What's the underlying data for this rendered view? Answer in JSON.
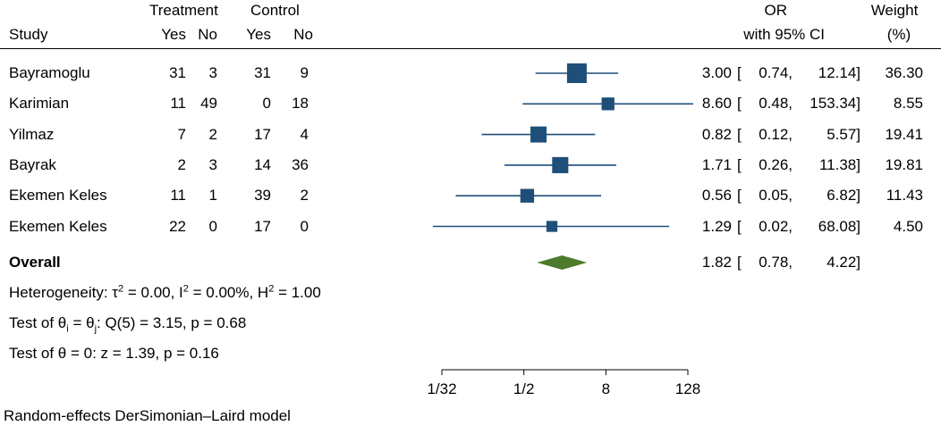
{
  "header": {
    "study_label": "Study",
    "treatment_label": "Treatment",
    "control_label": "Control",
    "yes_label": "Yes",
    "no_label": "No",
    "or_label": "OR",
    "ci_label": "with 95% CI",
    "weight_label": "Weight",
    "weight_unit": "(%)"
  },
  "studies": [
    {
      "name": "Bayramoglu",
      "t_yes": "31",
      "t_no": "3",
      "c_yes": "31",
      "c_no": "9",
      "or_text": "3.00",
      "lo_text": "0.74,",
      "hi_text": "12.14]",
      "weight": "36.30"
    },
    {
      "name": "Karimian",
      "t_yes": "11",
      "t_no": "49",
      "c_yes": "0",
      "c_no": "18",
      "or_text": "8.60",
      "lo_text": "0.48,",
      "hi_text": "153.34]",
      "weight": "8.55"
    },
    {
      "name": "Yilmaz",
      "t_yes": "7",
      "t_no": "2",
      "c_yes": "17",
      "c_no": "4",
      "or_text": "0.82",
      "lo_text": "0.12,",
      "hi_text": "5.57]",
      "weight": "19.41"
    },
    {
      "name": "Bayrak",
      "t_yes": "2",
      "t_no": "3",
      "c_yes": "14",
      "c_no": "36",
      "or_text": "1.71",
      "lo_text": "0.26,",
      "hi_text": "11.38]",
      "weight": "19.81"
    },
    {
      "name": "Ekemen Keles",
      "t_yes": "11",
      "t_no": "1",
      "c_yes": "39",
      "c_no": "2",
      "or_text": "0.56",
      "lo_text": "0.05,",
      "hi_text": "6.82]",
      "weight": "11.43"
    },
    {
      "name": "Ekemen Keles",
      "t_yes": "22",
      "t_no": "0",
      "c_yes": "17",
      "c_no": "0",
      "or_text": "1.29",
      "lo_text": "0.02,",
      "hi_text": "68.08]",
      "weight": "4.50"
    }
  ],
  "overall": {
    "label": "Overall",
    "or_text": "1.82",
    "lo_text": "0.78,",
    "hi_text": "4.22]"
  },
  "stats": {
    "het_prefix": "Heterogeneity: τ",
    "het_tau_sup": "2",
    "het_mid1": " = 0.00, I",
    "het_i_sup": "2",
    "het_mid2": " = 0.00%, H",
    "het_h_sup": "2",
    "het_end": " = 1.00",
    "test1_prefix": "Test of θ",
    "test1_sub_i": "i",
    "test1_mid": " = θ",
    "test1_sub_j": "j",
    "test1_end": ": Q(5) = 3.15, p = 0.68",
    "test2": "Test of θ = 0: z = 1.39, p = 0.16"
  },
  "footnote": "Random-effects DerSimonian–Laird model",
  "colors": {
    "marker": "#1f4e79",
    "diamond": "#4e7a2b"
  },
  "chart_data": {
    "type": "forest",
    "title": "",
    "xscale": "log2",
    "xlim": [
      0.03125,
      128
    ],
    "xticks": [
      0.03125,
      0.5,
      8,
      128
    ],
    "xtick_labels": [
      "1/32",
      "1/2",
      "8",
      "128"
    ],
    "columns": [
      "Study",
      "Treatment Yes",
      "Treatment No",
      "Control Yes",
      "Control No",
      "OR with 95% CI",
      "Weight (%)"
    ],
    "series": [
      {
        "name": "Bayramoglu",
        "or": 3.0,
        "lo": 0.74,
        "hi": 12.14,
        "weight": 36.3
      },
      {
        "name": "Karimian",
        "or": 8.6,
        "lo": 0.48,
        "hi": 153.34,
        "weight": 8.55
      },
      {
        "name": "Yilmaz",
        "or": 0.82,
        "lo": 0.12,
        "hi": 5.57,
        "weight": 19.41
      },
      {
        "name": "Bayrak",
        "or": 1.71,
        "lo": 0.26,
        "hi": 11.38,
        "weight": 19.81
      },
      {
        "name": "Ekemen Keles",
        "or": 0.56,
        "lo": 0.05,
        "hi": 6.82,
        "weight": 11.43
      },
      {
        "name": "Ekemen Keles",
        "or": 1.29,
        "lo": 0.02,
        "hi": 68.08,
        "weight": 4.5
      }
    ],
    "overall": {
      "name": "Overall",
      "or": 1.82,
      "lo": 0.78,
      "hi": 4.22
    },
    "model": "Random-effects DerSimonian–Laird model"
  }
}
